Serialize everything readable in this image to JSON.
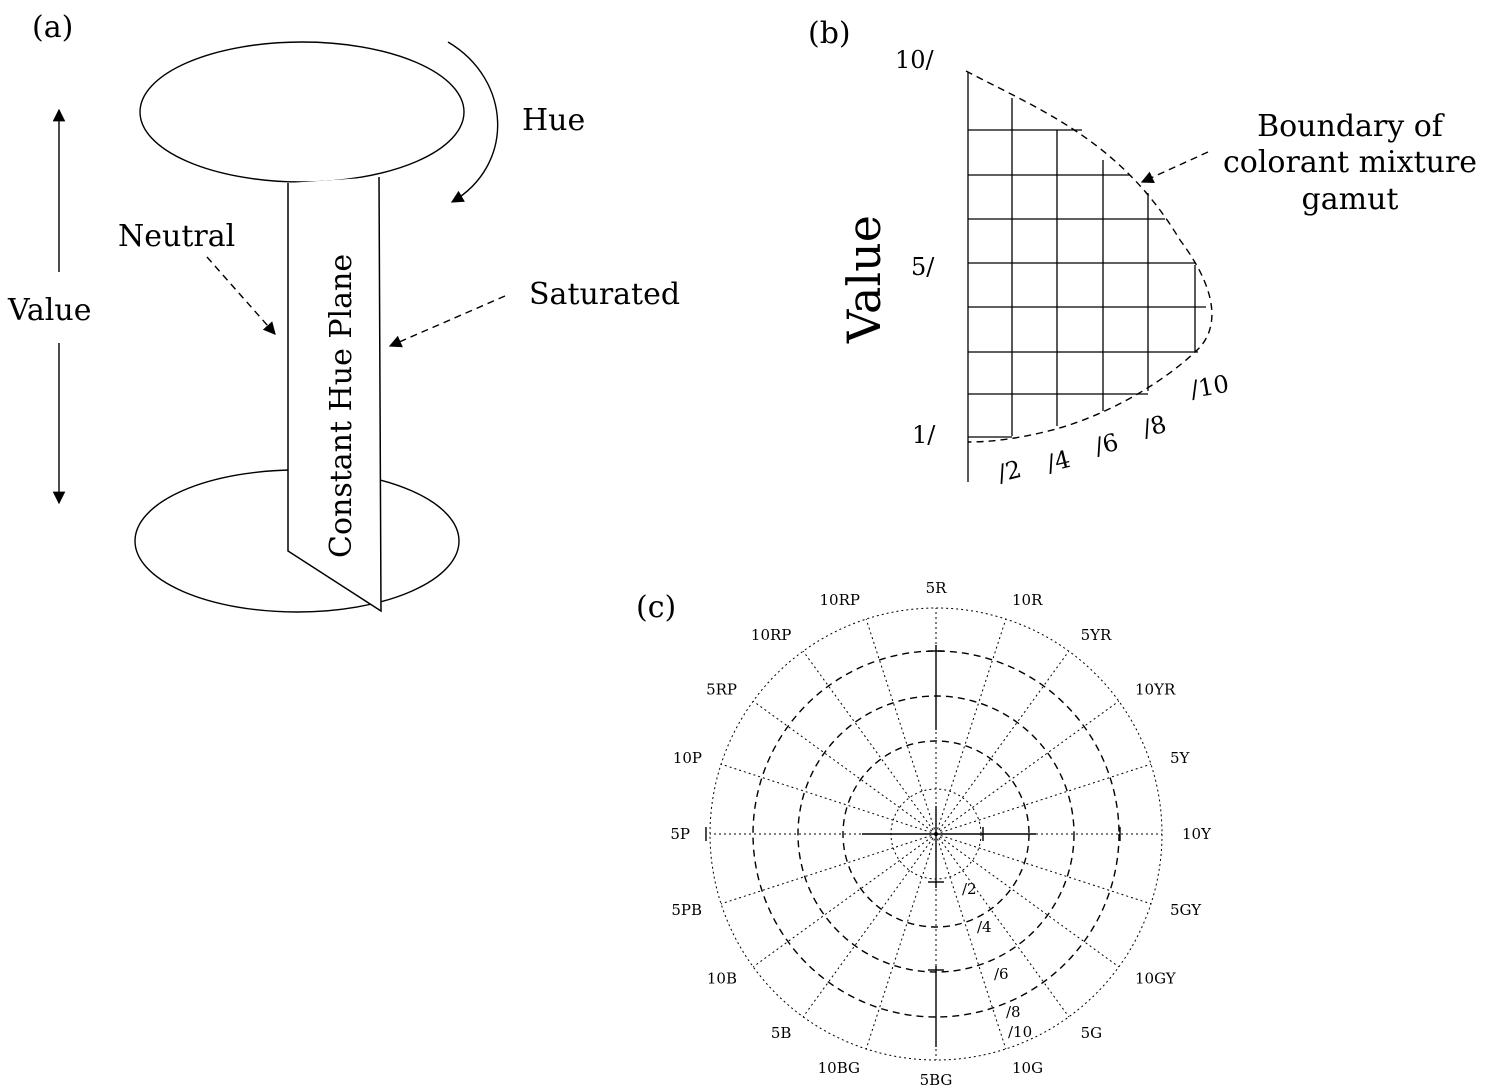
{
  "panels": {
    "a": {
      "tag": "(a)",
      "hue_label": "Hue",
      "neutral_label": "Neutral",
      "saturated_label": "Saturated",
      "value_label": "Value",
      "plane_label": "Constant Hue Plane"
    },
    "b": {
      "tag": "(b)",
      "axis_label": "Value",
      "value_ticks": [
        "10/",
        "5/",
        "1/"
      ],
      "chroma_ticks": [
        "/2",
        "/4",
        "/6",
        "/8",
        "/10"
      ],
      "boundary_label_lines": [
        "Boundary of",
        "colorant mixture",
        "gamut"
      ]
    },
    "c": {
      "tag": "(c)",
      "hue_labels": [
        "5R",
        "10R",
        "5YR",
        "10YR",
        "5Y",
        "10Y",
        "5GY",
        "10GY",
        "5G",
        "10G",
        "5BG",
        "10BG",
        "5B",
        "10B",
        "5PB",
        "5P",
        "10P",
        "5RP",
        "10RP",
        "10RP"
      ],
      "chroma_labels": [
        "/2",
        "/4",
        "/6",
        "/8",
        "/10"
      ]
    }
  }
}
